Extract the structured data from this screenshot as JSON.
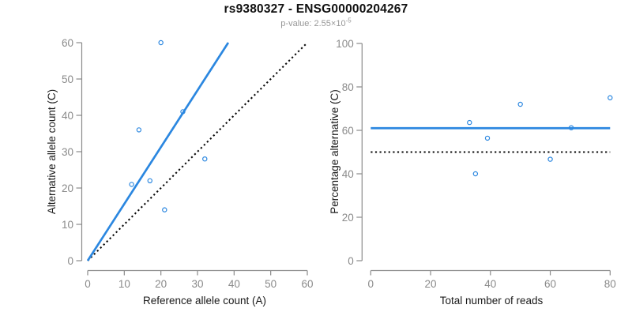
{
  "header": {
    "title": "rs9380327 - ENSG00000204267",
    "p_value_prefix": "p-value: ",
    "p_value_base": "2.55×10",
    "p_value_exponent": "-5"
  },
  "colors": {
    "accent_blue": "#2B87E0",
    "dotted_black": "#0a0a0a",
    "axis_gray": "#8a8a8a",
    "tick_label_gray": "#8a8a8a",
    "title_black": "#111111",
    "subtitle_gray": "#979797"
  },
  "chart_data": [
    {
      "type": "scatter",
      "panel": "left",
      "title": "",
      "xlabel": "Reference allele count (A)",
      "ylabel": "Alternative allele count (C)",
      "xlim": [
        0,
        60
      ],
      "ylim": [
        0,
        60
      ],
      "xticks": [
        0,
        10,
        20,
        30,
        40,
        50,
        60
      ],
      "yticks": [
        0,
        10,
        20,
        30,
        40,
        50,
        60
      ],
      "grid": false,
      "legend": "none",
      "points": [
        [
          12,
          21
        ],
        [
          14,
          36
        ],
        [
          17,
          22
        ],
        [
          20,
          60
        ],
        [
          21,
          14
        ],
        [
          26,
          41
        ],
        [
          32,
          28
        ]
      ],
      "lines": [
        {
          "name": "identity-line",
          "style": "dotted",
          "color": "black",
          "x1": 0,
          "y1": 0,
          "x2": 60,
          "y2": 60
        },
        {
          "name": "fit-line",
          "style": "solid",
          "color": "blue",
          "x1": 0,
          "y1": 0,
          "x2": 38.4,
          "y2": 60
        }
      ]
    },
    {
      "type": "scatter",
      "panel": "right",
      "title": "",
      "xlabel": "Total number of reads",
      "ylabel": "Percentage alternative (C)",
      "xlim": [
        0,
        80
      ],
      "ylim": [
        0,
        100
      ],
      "xticks": [
        0,
        20,
        40,
        60,
        80
      ],
      "yticks": [
        0,
        20,
        40,
        60,
        80,
        100
      ],
      "grid": false,
      "legend": "none",
      "points": [
        [
          33,
          63.6
        ],
        [
          35,
          40
        ],
        [
          39,
          56.4
        ],
        [
          50,
          72
        ],
        [
          60,
          46.7
        ],
        [
          67,
          61.2
        ],
        [
          80,
          75
        ]
      ],
      "lines": [
        {
          "name": "half-line",
          "style": "dotted",
          "color": "black",
          "x1": 0,
          "y1": 50,
          "x2": 80,
          "y2": 50
        },
        {
          "name": "mean-line",
          "style": "solid",
          "color": "blue",
          "x1": 0,
          "y1": 61,
          "x2": 80,
          "y2": 61
        }
      ]
    }
  ]
}
